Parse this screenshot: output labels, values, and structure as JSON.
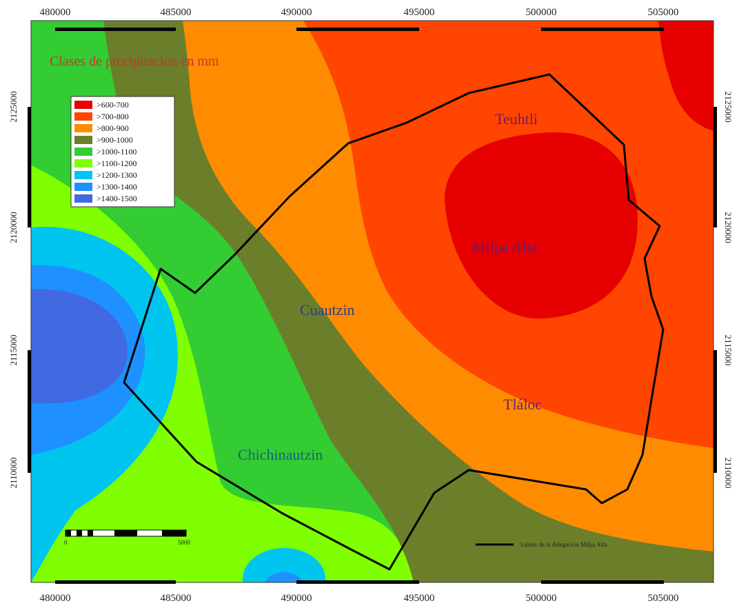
{
  "map_title": "Clases de precipitacion en mm",
  "x_ticks": [
    "480000",
    "485000",
    "490000",
    "495000",
    "500000",
    "505000"
  ],
  "y_ticks": [
    "2125000",
    "2120000",
    "2115000",
    "2110000"
  ],
  "legend": [
    {
      "label": ">600-700",
      "color": "#e60000"
    },
    {
      "label": ">700-800",
      "color": "#ff4500"
    },
    {
      "label": ">800-900",
      "color": "#ff8c00"
    },
    {
      "label": ">900-1000",
      "color": "#6b7f2a"
    },
    {
      "label": ">1000-1100",
      "color": "#33cc33"
    },
    {
      "label": ">1100-1200",
      "color": "#7fff00"
    },
    {
      "label": ">1200-1300",
      "color": "#00c5ef"
    },
    {
      "label": ">1300-1400",
      "color": "#1e90ff"
    },
    {
      "label": ">1400-1500",
      "color": "#4169e1"
    }
  ],
  "places": {
    "teuhtli": "Teuhtli",
    "milpa_alta": "Milpa Alta",
    "cuautzin": "Cuautzin",
    "tlaloc": "Tláloc",
    "chichinautzin": "Chichinautzin"
  },
  "scale_bar": {
    "start": "0",
    "end": "5000"
  },
  "boundary_label": "Limite de la delegación Milpa Alta",
  "colors": {
    "title": "#c0392b",
    "place_purple": "#6a1b6b",
    "place_blue": "#2a3c8a",
    "place_teal": "#1f5f78"
  }
}
